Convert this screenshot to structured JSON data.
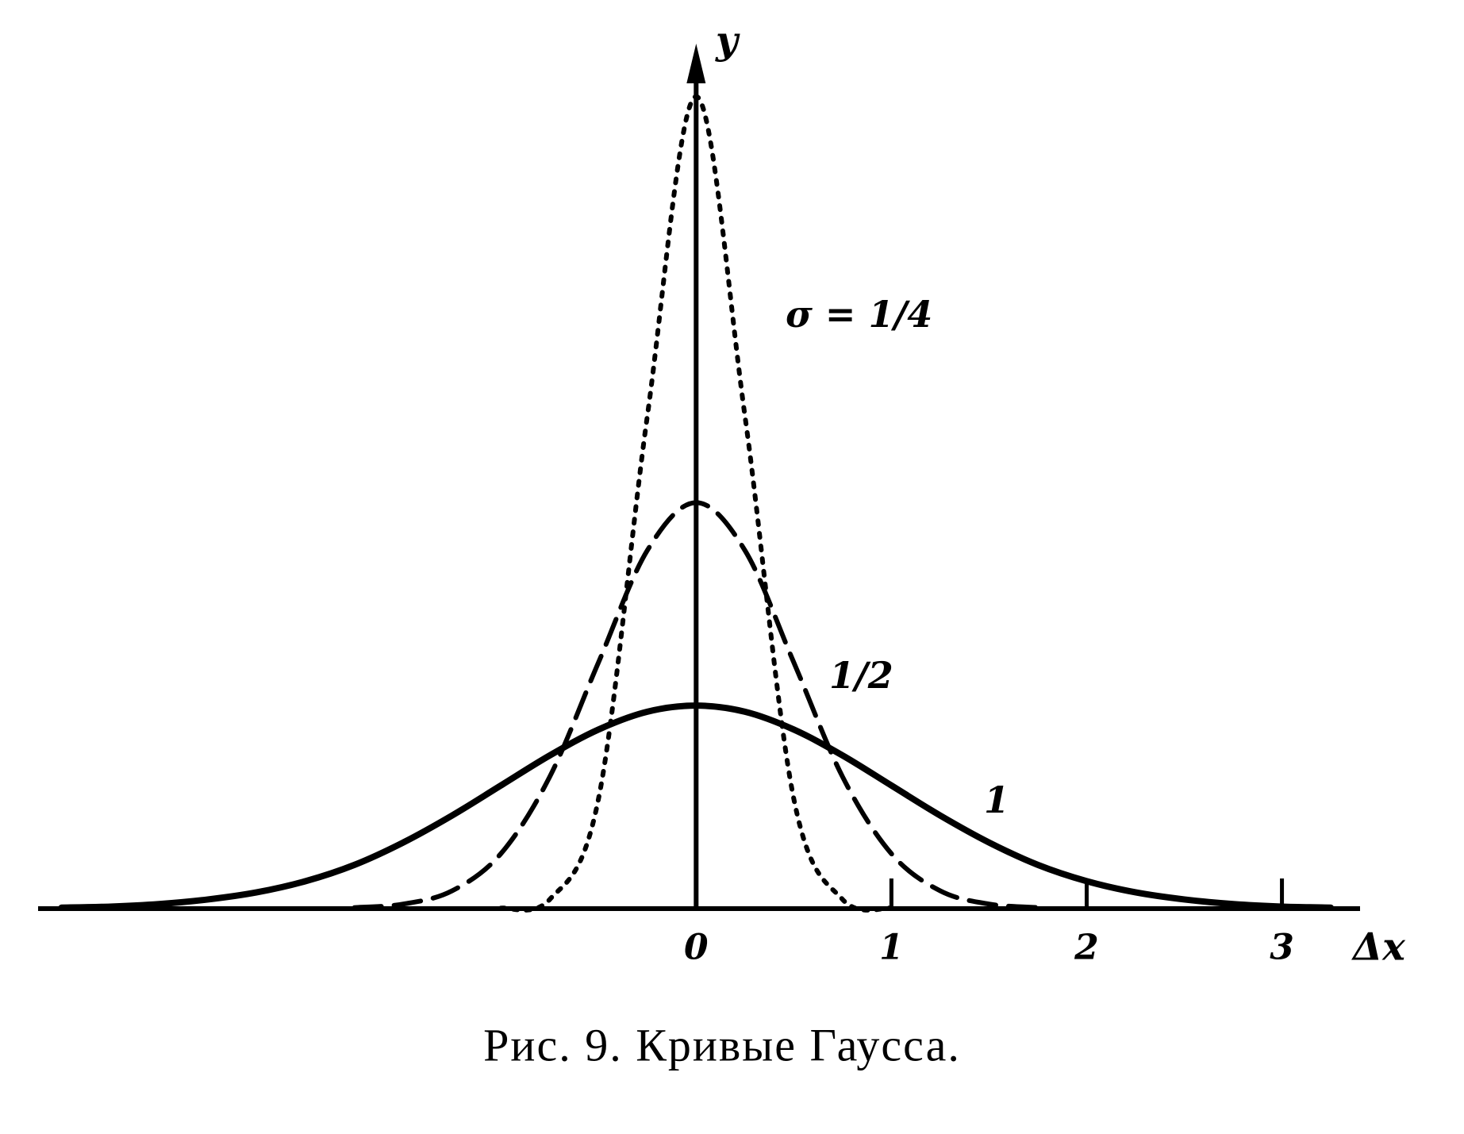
{
  "chart_data": {
    "type": "line",
    "caption": "Рис. 9. Кривые Гаусса.",
    "x_label": "Δx",
    "y_label": "y",
    "x": [
      -3.25,
      -3,
      -2.75,
      -2.5,
      -2.25,
      -2,
      -1.75,
      -1.5,
      -1.25,
      -1,
      -0.75,
      -0.5,
      -0.25,
      0,
      0.25,
      0.5,
      0.75,
      1,
      1.25,
      1.5,
      1.75,
      2,
      2.25,
      2.5,
      2.75,
      3,
      3.25
    ],
    "series": [
      {
        "name": "σ = 1/4",
        "color": "#000000",
        "style": "dotted",
        "values": [
          null,
          null,
          null,
          null,
          null,
          null,
          null,
          null,
          null,
          0.001,
          0.018,
          0.216,
          0.968,
          1.596,
          0.968,
          0.216,
          0.018,
          0.001,
          null,
          null,
          null,
          null,
          null,
          null,
          null,
          null,
          null
        ]
      },
      {
        "name": "1/2",
        "color": "#000000",
        "style": "dashed",
        "values": [
          null,
          null,
          null,
          null,
          null,
          null,
          0.002,
          0.009,
          0.035,
          0.108,
          0.259,
          0.484,
          0.704,
          0.798,
          0.704,
          0.484,
          0.259,
          0.108,
          0.035,
          0.009,
          0.002,
          null,
          null,
          null,
          null,
          null,
          null
        ]
      },
      {
        "name": "1",
        "color": "#000000",
        "style": "solid",
        "values": [
          0.002,
          0.004,
          0.009,
          0.018,
          0.032,
          0.054,
          0.086,
          0.13,
          0.183,
          0.242,
          0.301,
          0.352,
          0.387,
          0.399,
          0.387,
          0.352,
          0.301,
          0.242,
          0.183,
          0.13,
          0.086,
          0.054,
          0.032,
          0.018,
          0.009,
          0.004,
          0.002
        ]
      }
    ],
    "xlim": [
      -3.37,
      3.4
    ],
    "ylim": [
      0,
      1.7
    ],
    "xticks": [
      0,
      1,
      2,
      3
    ]
  }
}
